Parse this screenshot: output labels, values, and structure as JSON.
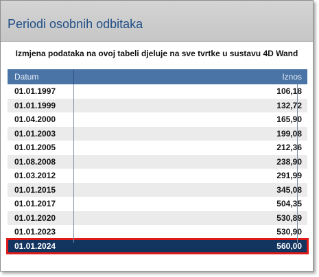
{
  "window": {
    "title": "Periodi osobnih odbitaka",
    "info": "Izmjena podataka na ovoj tabeli djeluje na sve tvrtke u sustavu 4D Wand"
  },
  "table": {
    "headers": {
      "date": "Datum",
      "amount": "Iznos"
    },
    "rows": [
      {
        "date": "01.01.1997",
        "amount": "106,18"
      },
      {
        "date": "01.01.1999",
        "amount": "132,72"
      },
      {
        "date": "01.04.2000",
        "amount": "165,90"
      },
      {
        "date": "01.01.2003",
        "amount": "199,08"
      },
      {
        "date": "01.01.2005",
        "amount": "212,36"
      },
      {
        "date": "01.08.2008",
        "amount": "238,90"
      },
      {
        "date": "01.03.2012",
        "amount": "291,99"
      },
      {
        "date": "01.01.2015",
        "amount": "345,08"
      },
      {
        "date": "01.01.2017",
        "amount": "504,35"
      },
      {
        "date": "01.01.2020",
        "amount": "530,89"
      },
      {
        "date": "01.01.2023",
        "amount": "530,90"
      },
      {
        "date": "01.01.2024",
        "amount": "560,00"
      }
    ],
    "selected_index": 11
  },
  "colors": {
    "title": "#1f4e86",
    "header_bg": "#4a74a5",
    "selected_bg": "#123560",
    "highlight_border": "#e01919"
  }
}
